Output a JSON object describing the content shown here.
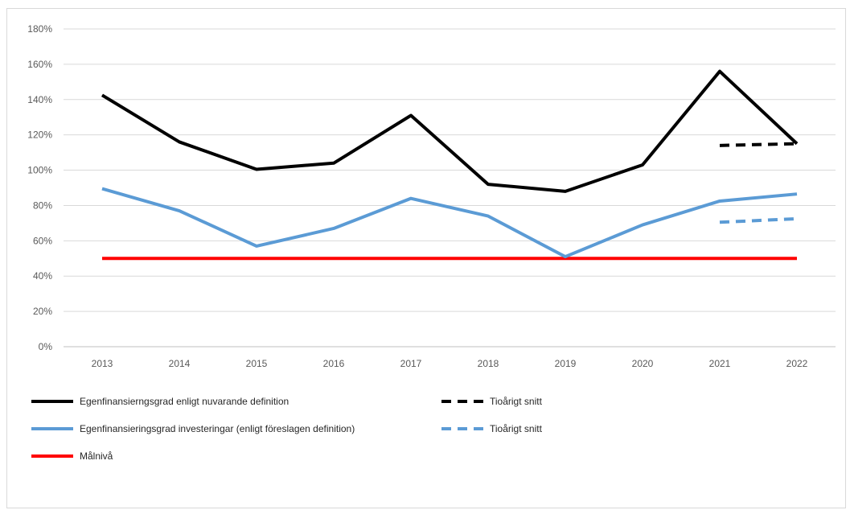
{
  "chart_data": {
    "type": "line",
    "x": [
      "2013",
      "2014",
      "2015",
      "2016",
      "2017",
      "2018",
      "2019",
      "2020",
      "2021",
      "2022"
    ],
    "ylim": [
      0,
      180
    ],
    "yticks": [
      0,
      20,
      40,
      60,
      80,
      100,
      120,
      140,
      160,
      180
    ],
    "ytick_labels": [
      "0%",
      "20%",
      "40%",
      "60%",
      "80%",
      "100%",
      "120%",
      "140%",
      "160%",
      "180%"
    ],
    "grid": true,
    "legend_position": "bottom",
    "series": [
      {
        "name": "Egenfinansierngsgrad enligt nuvarande definition",
        "color": "#000000",
        "dash": false,
        "values": [
          142.5,
          116,
          100.5,
          104,
          131,
          92,
          88,
          103,
          156,
          115
        ]
      },
      {
        "name": "Egenfinansieringsgrad investeringar (enligt föreslagen definition)",
        "color": "#5b9bd5",
        "dash": false,
        "values": [
          89.5,
          77,
          57,
          67,
          84,
          74,
          51,
          69,
          82.5,
          86.5
        ]
      },
      {
        "name": "Målnivå",
        "color": "#ff0000",
        "dash": false,
        "values": [
          50,
          50,
          50,
          50,
          50,
          50,
          50,
          50,
          50,
          50
        ]
      },
      {
        "name": "Tioårigt snitt",
        "color": "#000000",
        "dash": true,
        "values": [
          null,
          null,
          null,
          null,
          null,
          null,
          null,
          null,
          114,
          115
        ]
      },
      {
        "name": "Tioårigt snitt",
        "color": "#5b9bd5",
        "dash": true,
        "values": [
          null,
          null,
          null,
          null,
          null,
          null,
          null,
          null,
          70.5,
          72.5
        ]
      }
    ],
    "legend": [
      {
        "series": 0
      },
      {
        "series": 3
      },
      {
        "series": 1
      },
      {
        "series": 4
      },
      {
        "series": 2
      }
    ]
  }
}
